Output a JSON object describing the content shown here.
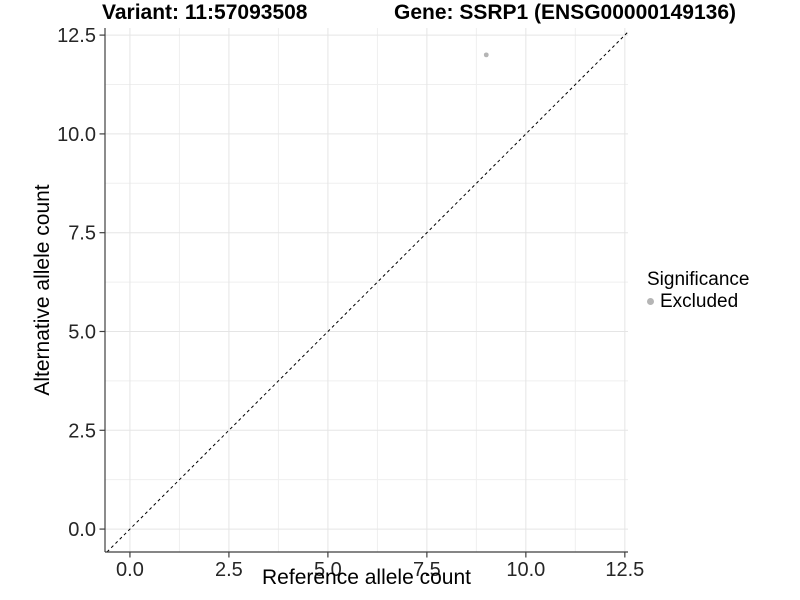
{
  "titles": {
    "variant": "Variant: 11:57093508",
    "gene": "Gene: SSRP1 (ENSG00000149136)"
  },
  "legend": {
    "title": "Significance",
    "entries": [
      {
        "label": "Excluded",
        "color": "#b5b5b5"
      }
    ]
  },
  "chart_data": {
    "type": "scatter",
    "title": "Variant: 11:57093508  /  Gene: SSRP1 (ENSG00000149136)",
    "xlabel": "Reference allele count",
    "ylabel": "Alternative allele count",
    "series": [
      {
        "name": "Excluded",
        "color": "#b5b5b5",
        "points": [
          [
            9,
            12
          ]
        ]
      }
    ],
    "x_ticks": {
      "values": [
        0,
        2.5,
        5,
        7.5,
        10,
        12.5
      ],
      "labels": [
        "0.0",
        "2.5",
        "5.0",
        "7.5",
        "10.0",
        "12.5"
      ]
    },
    "y_ticks": {
      "values": [
        0,
        2.5,
        5,
        7.5,
        10,
        12.5
      ],
      "labels": [
        "0.0",
        "2.5",
        "5.0",
        "7.5",
        "10.0",
        "12.5"
      ]
    },
    "x_minor": [
      1.25,
      3.75,
      6.25,
      8.75,
      11.25
    ],
    "y_minor": [
      1.25,
      3.75,
      6.25,
      8.75,
      11.25
    ],
    "xlim": [
      -0.63,
      12.58
    ],
    "ylim": [
      -0.58,
      12.68
    ],
    "reference_line": {
      "kind": "identity y=x",
      "style": "dashed",
      "color": "#000000"
    },
    "grid": true,
    "legend_position": "right",
    "colors": {
      "grid_major": "#e5e5e5",
      "grid_minor": "#efefef",
      "axis": "#3f3f3f",
      "tick_text": "#262626",
      "point": "#b5b5b5",
      "background": "#ffffff"
    }
  }
}
